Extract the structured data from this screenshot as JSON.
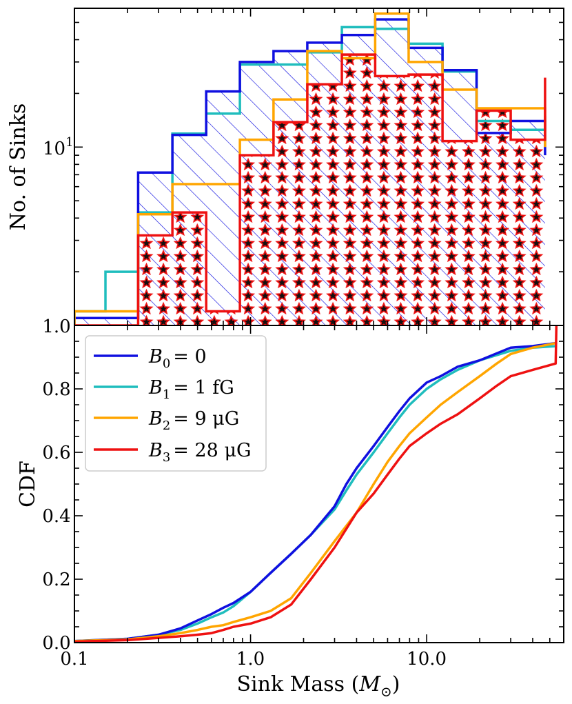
{
  "chart_data": [
    {
      "type": "histogram",
      "xscale": "log",
      "yscale": "log",
      "xlim": [
        0.1,
        60
      ],
      "ylim": [
        1.0,
        60
      ],
      "ylabel": "No. of Sinks",
      "yticks": [
        {
          "value": 1.0,
          "label": "1.0"
        },
        {
          "value": 10,
          "label": "10",
          "exp": "1"
        }
      ],
      "bin_edges": [
        0.1,
        0.15,
        0.23,
        0.36,
        0.56,
        0.87,
        1.35,
        2.1,
        3.3,
        5.1,
        7.9,
        12.3,
        19.2,
        30,
        47
      ],
      "series": [
        {
          "name": "B0 = 0",
          "color": "#1010e0",
          "hatch": "diagonal",
          "counts": [
            1.1,
            1.1,
            7.2,
            11.7,
            20.5,
            30,
            34.5,
            38.5,
            42.5,
            52,
            36,
            27,
            12,
            14,
            9
          ]
        },
        {
          "name": "B1 = 1 fG",
          "color": "#1fbdbd",
          "hatch": "none",
          "counts": [
            1.2,
            2,
            4.3,
            11.9,
            15.4,
            29,
            29,
            34,
            47,
            46,
            38,
            26.5,
            14,
            12.5,
            15
          ]
        },
        {
          "name": "B2 = 9 μG",
          "color": "#ffa500",
          "hatch": "none",
          "counts": [
            1.2,
            1.2,
            4.2,
            6.2,
            6.2,
            11,
            18.5,
            34.5,
            31.5,
            56,
            30,
            21,
            16.5,
            16.5,
            10
          ]
        },
        {
          "name": "B3 = 28 μG",
          "color": "#ee1111",
          "hatch": "stars",
          "counts": [
            1,
            1,
            3.2,
            4.3,
            1.2,
            9,
            13.8,
            22.5,
            33,
            25,
            25.5,
            10.8,
            16,
            11,
            24.5
          ]
        }
      ]
    },
    {
      "type": "line",
      "xscale": "log",
      "xlim": [
        0.1,
        60
      ],
      "ylim": [
        0.0,
        1.0
      ],
      "xlabel": "Sink Mass (M_sun)",
      "ylabel": "CDF",
      "xticks": [
        {
          "value": 0.1,
          "label": "0.1"
        },
        {
          "value": 1.0,
          "label": "1.0"
        },
        {
          "value": 10,
          "label": "10.0"
        }
      ],
      "yticks": [
        {
          "value": 0.0,
          "label": "0.0"
        },
        {
          "value": 0.2,
          "label": "0.2"
        },
        {
          "value": 0.4,
          "label": "0.4"
        },
        {
          "value": 0.6,
          "label": "0.6"
        },
        {
          "value": 0.8,
          "label": "0.8"
        },
        {
          "value": 1.0,
          "label": "1.0"
        }
      ],
      "legend_position": "upper-left",
      "series": [
        {
          "name": "B0 = 0",
          "color": "#1010e0",
          "x": [
            0.1,
            0.2,
            0.3,
            0.4,
            0.5,
            0.6,
            0.7,
            0.8,
            1.0,
            1.3,
            1.7,
            2.2,
            3.0,
            3.5,
            4.0,
            5.0,
            6.0,
            7.0,
            8.0,
            10.0,
            12.0,
            15.0,
            20.0,
            30.0,
            40.0,
            55.0
          ],
          "y": [
            0.005,
            0.012,
            0.025,
            0.045,
            0.07,
            0.09,
            0.11,
            0.125,
            0.16,
            0.22,
            0.28,
            0.34,
            0.43,
            0.5,
            0.55,
            0.62,
            0.68,
            0.73,
            0.77,
            0.82,
            0.84,
            0.87,
            0.89,
            0.93,
            0.935,
            0.945
          ]
        },
        {
          "name": "B1 = 1 fG",
          "color": "#1fbdbd",
          "x": [
            0.1,
            0.2,
            0.3,
            0.4,
            0.5,
            0.6,
            0.7,
            0.8,
            1.0,
            1.3,
            1.7,
            2.2,
            3.0,
            3.5,
            4.0,
            5.0,
            6.0,
            7.0,
            8.0,
            10.0,
            12.0,
            15.0,
            20.0,
            30.0,
            40.0,
            55.0
          ],
          "y": [
            0.005,
            0.012,
            0.025,
            0.04,
            0.06,
            0.08,
            0.095,
            0.115,
            0.16,
            0.22,
            0.28,
            0.34,
            0.42,
            0.48,
            0.53,
            0.6,
            0.66,
            0.71,
            0.75,
            0.8,
            0.83,
            0.86,
            0.89,
            0.92,
            0.93,
            0.935
          ]
        },
        {
          "name": "B2 = 9 μG",
          "color": "#ffa500",
          "x": [
            0.1,
            0.2,
            0.3,
            0.4,
            0.5,
            0.6,
            0.7,
            0.8,
            1.0,
            1.3,
            1.7,
            2.2,
            3.0,
            4.0,
            5.0,
            6.0,
            7.0,
            8.0,
            10.0,
            12.0,
            15.0,
            20.0,
            25.0,
            30.0,
            40.0,
            55.0
          ],
          "y": [
            0.005,
            0.01,
            0.02,
            0.03,
            0.04,
            0.05,
            0.055,
            0.065,
            0.08,
            0.1,
            0.14,
            0.22,
            0.32,
            0.41,
            0.5,
            0.57,
            0.62,
            0.66,
            0.71,
            0.75,
            0.79,
            0.84,
            0.88,
            0.91,
            0.93,
            0.945
          ]
        },
        {
          "name": "B3 = 28 μG",
          "color": "#ee1111",
          "x": [
            0.1,
            0.2,
            0.3,
            0.4,
            0.5,
            0.6,
            0.7,
            0.8,
            1.0,
            1.3,
            1.7,
            2.2,
            3.0,
            4.0,
            5.0,
            6.0,
            7.0,
            8.0,
            10.0,
            12.0,
            15.0,
            20.0,
            25.0,
            30.0,
            40.0,
            54.0,
            54.5
          ],
          "y": [
            0.003,
            0.008,
            0.015,
            0.02,
            0.025,
            0.03,
            0.04,
            0.05,
            0.06,
            0.08,
            0.12,
            0.2,
            0.3,
            0.41,
            0.47,
            0.53,
            0.58,
            0.62,
            0.66,
            0.69,
            0.72,
            0.77,
            0.81,
            0.84,
            0.86,
            0.88,
            1.0
          ]
        }
      ]
    }
  ],
  "legend": {
    "items": [
      {
        "sym": "B",
        "sub": "0",
        "value": "= 0",
        "color": "#1010e0"
      },
      {
        "sym": "B",
        "sub": "1",
        "value": "= 1 fG",
        "color": "#1fbdbd"
      },
      {
        "sym": "B",
        "sub": "2",
        "value": "= 9 μG",
        "color": "#ffa500"
      },
      {
        "sym": "B",
        "sub": "3",
        "value": "= 28 μG",
        "color": "#ee1111"
      }
    ]
  },
  "xaxis_title": {
    "text": "Sink Mass (",
    "sym": "M",
    "sub": "⊙",
    "close": ")"
  },
  "top_ylabel": "No. of Sinks",
  "bottom_ylabel": "CDF"
}
